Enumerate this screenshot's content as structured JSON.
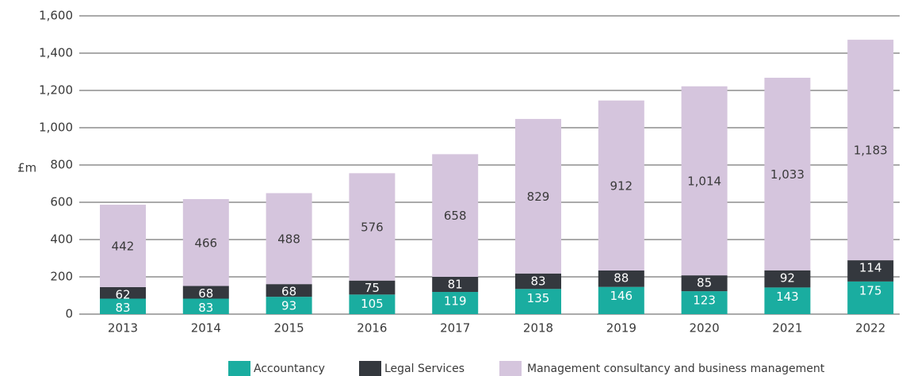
{
  "chart_data": {
    "type": "stacked_bar",
    "y_label": "£m",
    "categories": [
      "2013",
      "2014",
      "2015",
      "2016",
      "2017",
      "2018",
      "2019",
      "2020",
      "2021",
      "2022"
    ],
    "series": [
      {
        "name": "Accountancy",
        "color": "#1aada0",
        "values": [
          83,
          83,
          93,
          105,
          119,
          135,
          146,
          123,
          143,
          175
        ]
      },
      {
        "name": "Legal Services",
        "color": "#34383e",
        "values": [
          62,
          68,
          68,
          75,
          81,
          83,
          88,
          85,
          92,
          114
        ]
      },
      {
        "name": "Management consultancy and business management",
        "color": "#d5c5dd",
        "values": [
          442,
          466,
          488,
          576,
          658,
          829,
          912,
          1014,
          1033,
          1183
        ],
        "value_labels": [
          "442",
          "466",
          "488",
          "576",
          "658",
          "829",
          "912",
          "1,014",
          "1,033",
          "1,183"
        ]
      }
    ],
    "ylim": [
      0,
      1600
    ],
    "yticks": [
      0,
      200,
      400,
      600,
      800,
      {
        "value": 1000,
        "label": "1,000"
      },
      {
        "value": 1200,
        "label": "1,200"
      },
      {
        "value": 1400,
        "label": "1,400"
      },
      {
        "value": 1600,
        "label": "1,600"
      }
    ],
    "grid": true
  }
}
